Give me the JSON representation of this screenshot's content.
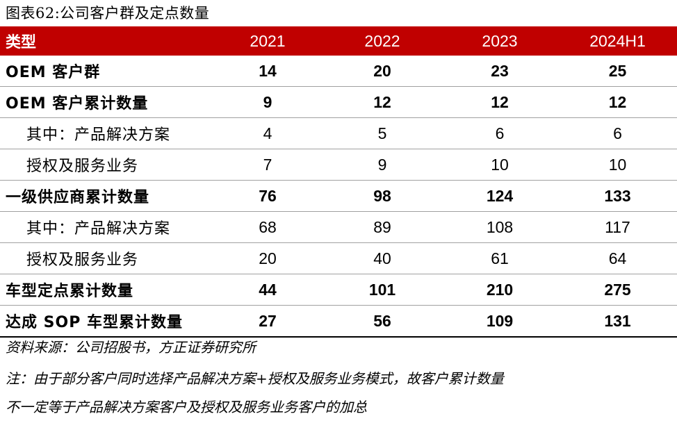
{
  "title": "图表62:公司客户群及定点数量",
  "colors": {
    "header_bg": "#c00000",
    "header_text": "#ffffff",
    "divider": "#a0a0a0"
  },
  "table": {
    "headers": [
      "类型",
      "2021",
      "2022",
      "2023",
      "2024H1"
    ],
    "rows": [
      {
        "label": "OEM 客户群",
        "values": [
          "14",
          "20",
          "23",
          "25"
        ],
        "style": "bold"
      },
      {
        "label": "OEM 客户累计数量",
        "values": [
          "9",
          "12",
          "12",
          "12"
        ],
        "style": "bold"
      },
      {
        "label": "其中：产品解决方案",
        "values": [
          "4",
          "5",
          "6",
          "6"
        ],
        "style": "sub"
      },
      {
        "label": "授权及服务业务",
        "values": [
          "7",
          "9",
          "10",
          "10"
        ],
        "style": "sub"
      },
      {
        "label": "一级供应商累计数量",
        "values": [
          "76",
          "98",
          "124",
          "133"
        ],
        "style": "bold"
      },
      {
        "label": "其中：产品解决方案",
        "values": [
          "68",
          "89",
          "108",
          "117"
        ],
        "style": "sub"
      },
      {
        "label": "授权及服务业务",
        "values": [
          "20",
          "40",
          "61",
          "64"
        ],
        "style": "sub"
      },
      {
        "label": "车型定点累计数量",
        "values": [
          "44",
          "101",
          "210",
          "275"
        ],
        "style": "bold"
      },
      {
        "label": "达成 SOP 车型累计数量",
        "values": [
          "27",
          "56",
          "109",
          "131"
        ],
        "style": "bold"
      }
    ]
  },
  "source": "资料来源：公司招股书，方正证券研究所",
  "note_line1": "注：由于部分客户同时选择产品解决方案+授权及服务业务模式，故客户累计数量",
  "note_line2": "不一定等于产品解决方案客户及授权及服务业务客户的加总"
}
